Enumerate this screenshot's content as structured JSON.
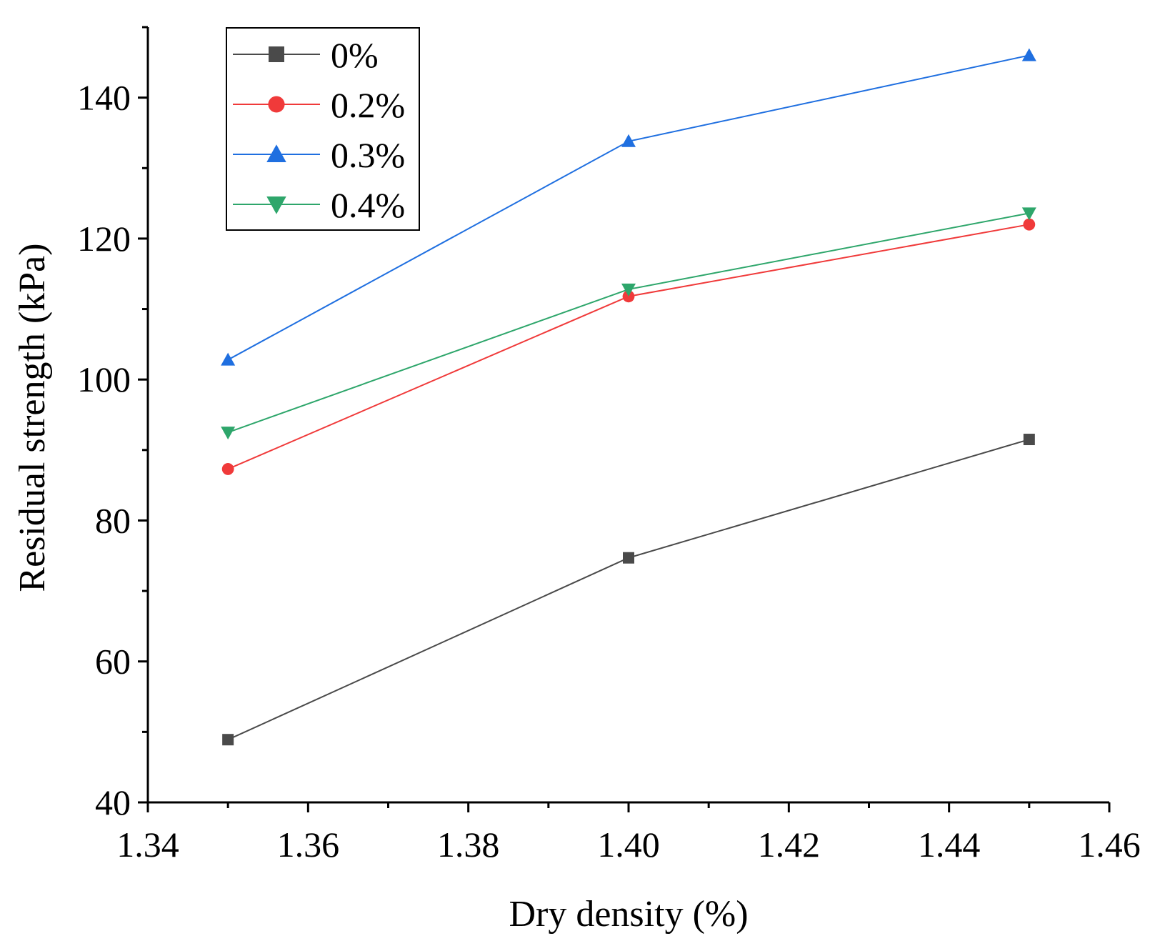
{
  "chart_data": {
    "type": "line",
    "title": "",
    "xlabel": "Dry density (%)",
    "ylabel": "Residual strength (kPa)",
    "xlim": [
      1.34,
      1.46
    ],
    "ylim": [
      40,
      150
    ],
    "xticks": [
      1.34,
      1.36,
      1.38,
      1.4,
      1.42,
      1.44,
      1.46
    ],
    "xtick_labels": [
      "1.34",
      "1.36",
      "1.38",
      "1.40",
      "1.42",
      "1.44",
      "1.46"
    ],
    "yticks": [
      40,
      60,
      80,
      100,
      120,
      140
    ],
    "ytick_labels": [
      "40",
      "60",
      "80",
      "100",
      "120",
      "140"
    ],
    "x": [
      1.35,
      1.4,
      1.45
    ],
    "grid": false,
    "legend_position": "top-left",
    "series": [
      {
        "name": "0%",
        "values": [
          48.9,
          74.7,
          91.5
        ],
        "color": "#4a4a4a",
        "marker": "square"
      },
      {
        "name": "0.2%",
        "values": [
          87.3,
          111.8,
          122.0
        ],
        "color": "#f03a3a",
        "marker": "circle"
      },
      {
        "name": "0.3%",
        "values": [
          102.8,
          133.8,
          146.0
        ],
        "color": "#1f6fe0",
        "marker": "triangle-up"
      },
      {
        "name": "0.4%",
        "values": [
          92.5,
          112.8,
          123.6
        ],
        "color": "#2ea66b",
        "marker": "triangle-down"
      }
    ]
  }
}
